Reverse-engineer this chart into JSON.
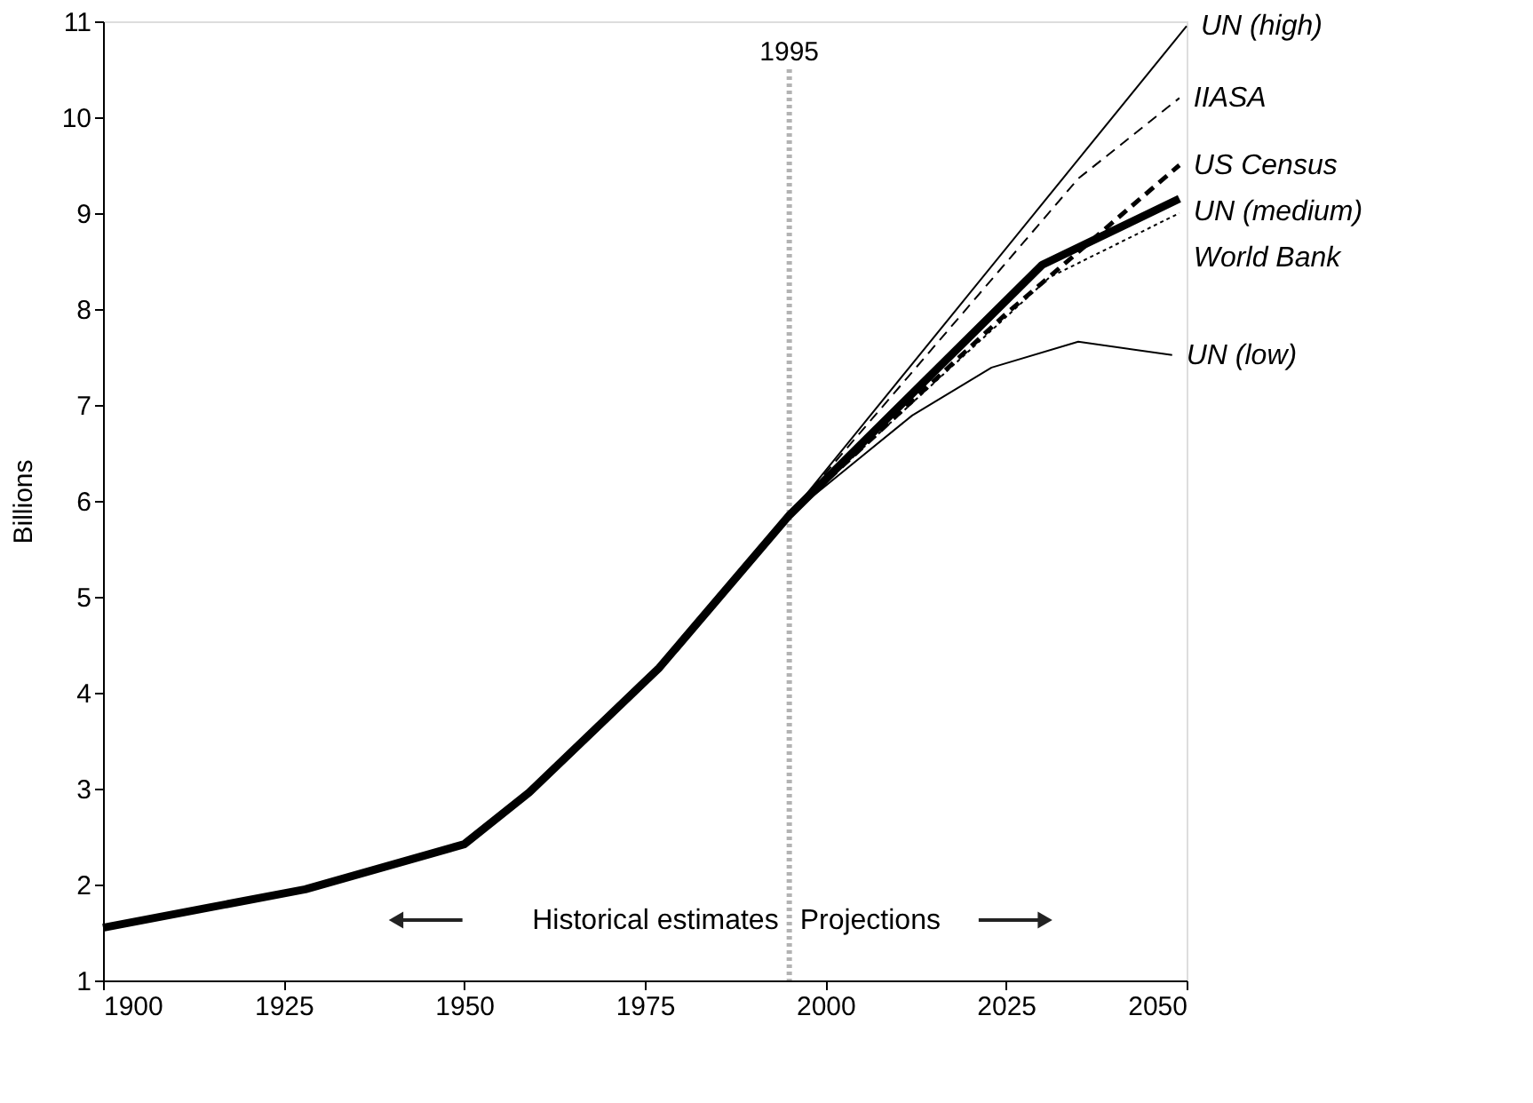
{
  "chart_data": {
    "type": "line",
    "ylabel": "Billions",
    "xlim": [
      1900,
      2050
    ],
    "xticks": [
      1900,
      1925,
      1950,
      1975,
      2000,
      2025,
      2050
    ],
    "ylim": [
      1,
      11
    ],
    "yticks": [
      1,
      2,
      3,
      4,
      5,
      6,
      7,
      8,
      9,
      10,
      11
    ],
    "grid": false,
    "legend": false,
    "series": [
      {
        "name": "UN (high)",
        "color": "#000000",
        "line_style": "solid",
        "x": [
          1995,
          2050
        ],
        "values": [
          5.85,
          10.95
        ]
      },
      {
        "name": "IIASA",
        "color": "#000000",
        "line_style": "dashed",
        "x": [
          1995,
          2035,
          2049
        ],
        "values": [
          5.85,
          9.36,
          10.2
        ]
      },
      {
        "name": "US Census",
        "color": "#000000",
        "line_style": "dashed",
        "x": [
          1995,
          2025,
          2049
        ],
        "values": [
          5.85,
          7.95,
          9.5
        ]
      },
      {
        "name": "UN (medium)",
        "color": "#000000",
        "line_style": "solid",
        "x": [
          1900,
          1928,
          1950,
          1959,
          1977,
          1995,
          2030,
          2049
        ],
        "values": [
          1.55,
          1.95,
          2.42,
          2.96,
          4.26,
          5.85,
          8.46,
          9.15
        ]
      },
      {
        "name": "World Bank",
        "color": "#000000",
        "line_style": "dotted",
        "x": [
          1995,
          2031,
          2049
        ],
        "values": [
          5.85,
          8.33,
          9.0
        ]
      },
      {
        "name": "UN (low)",
        "color": "#000000",
        "line_style": "solid",
        "x": [
          1995,
          2012,
          2023,
          2035,
          2048
        ],
        "values": [
          5.85,
          6.89,
          7.39,
          7.66,
          7.52
        ]
      }
    ],
    "ref_lines": [
      {
        "axis": "x",
        "value": 1995,
        "label": "1995",
        "color": "#b3b3b3",
        "line_style": "dotted"
      }
    ],
    "annotations": [
      "Historical estimates",
      "Projections"
    ]
  }
}
